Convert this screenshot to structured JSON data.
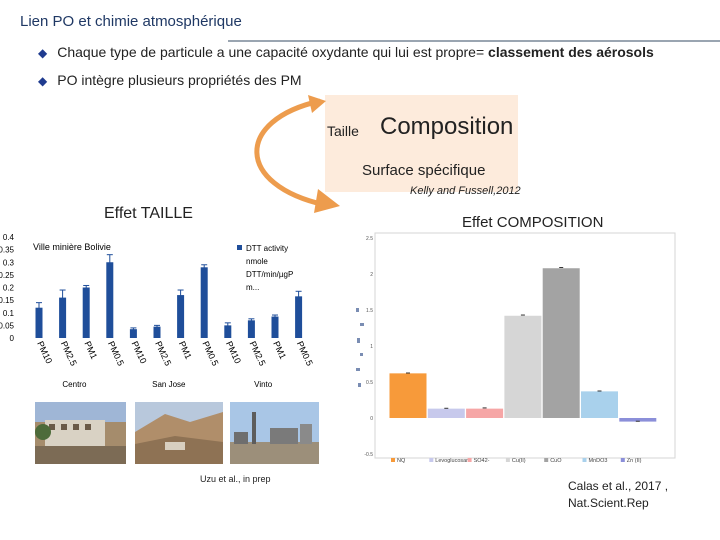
{
  "slide": {
    "title": "Lien PO et chimie atmosphérique",
    "bullets": [
      {
        "pre": "Chaque type de particule a une capacité oxydante qui lui est propre= ",
        "bold": "classement des aérosols"
      },
      {
        "pre": "PO intègre plusieurs propriétés des PM",
        "bold": ""
      }
    ],
    "diamond": "◆",
    "taille": "Taille",
    "composition": "Composition",
    "surface": "Surface spécifique",
    "kelly_ref": "Kelly and Fussell,2012",
    "effet_taille": "Effet TAILLE",
    "effet_composition": "Effet COMPOSITION",
    "uzu_ref": "Uzu et al., in prep",
    "calas_ref_line1": "Calas et al., 2017 ,",
    "calas_ref_line2": "Nat.Scient.Rep",
    "colors": {
      "title": "#1f3864",
      "bullet_diamond": "#1f3b8f",
      "composition_box": "#fdebdc",
      "curve_arrow": "#ed9c4d",
      "bar_blue": "#1f4e9a",
      "bar_orange": "#f79a3a",
      "bar_lavender": "#c7c9ec",
      "bar_pink": "#f6a6a6",
      "bar_lightgray": "#d6d6d6",
      "bar_gray": "#a3a3a3",
      "bar_lightblue": "#a9d1ec",
      "bar_purple": "#8b8fd9"
    }
  },
  "chart_data": [
    {
      "type": "bar",
      "title": "Ville minière Bolivie",
      "legend": "DTT activity nmole DTT/min/µgP m...",
      "legend_lines": [
        "DTT activity",
        "nmole",
        "DTT/min/µgP",
        "m..."
      ],
      "legend_placement": "top-right",
      "ylim": [
        0,
        0.4
      ],
      "yticks": [
        "0.4",
        "0.35",
        "0.3",
        "0.25",
        "0.2",
        "0.15",
        "0.1",
        "0.05",
        "0"
      ],
      "categories": [
        "PM10",
        "PM2.5",
        "PM1",
        "PM0.5",
        "PM10",
        "PM2.5",
        "PM1",
        "PM0.5",
        "PM10",
        "PM2.5",
        "PM1",
        "PM0.5"
      ],
      "groups": [
        "Centro",
        "San Jose",
        "Vinto"
      ],
      "values": [
        0.12,
        0.16,
        0.2,
        0.3,
        0.035,
        0.045,
        0.17,
        0.28,
        0.05,
        0.07,
        0.085,
        0.165
      ],
      "errors": [
        0.02,
        0.03,
        0.008,
        0.03,
        0.005,
        0.005,
        0.02,
        0.01,
        0.01,
        0.006,
        0.006,
        0.02
      ]
    },
    {
      "type": "bar",
      "ylim": [
        -0.5,
        2.5
      ],
      "yticks": [
        "2.5",
        "2",
        "1.5",
        "1",
        "0.5",
        "0",
        "-0.5"
      ],
      "categories": [
        "NQ",
        "Levoglucosan",
        "SO42-",
        "Cu(II)",
        "CuO",
        "MnDO3",
        "Zn (II)"
      ],
      "values": [
        0.62,
        0.13,
        0.13,
        1.42,
        2.08,
        0.37,
        -0.05
      ],
      "errors": [
        0.005,
        0.005,
        0.01,
        0.01,
        0.01,
        0.005,
        0.005
      ],
      "colors": [
        "#f79a3a",
        "#c7c9ec",
        "#f6a6a6",
        "#d6d6d6",
        "#a3a3a3",
        "#a9d1ec",
        "#8b8fd9"
      ]
    }
  ]
}
